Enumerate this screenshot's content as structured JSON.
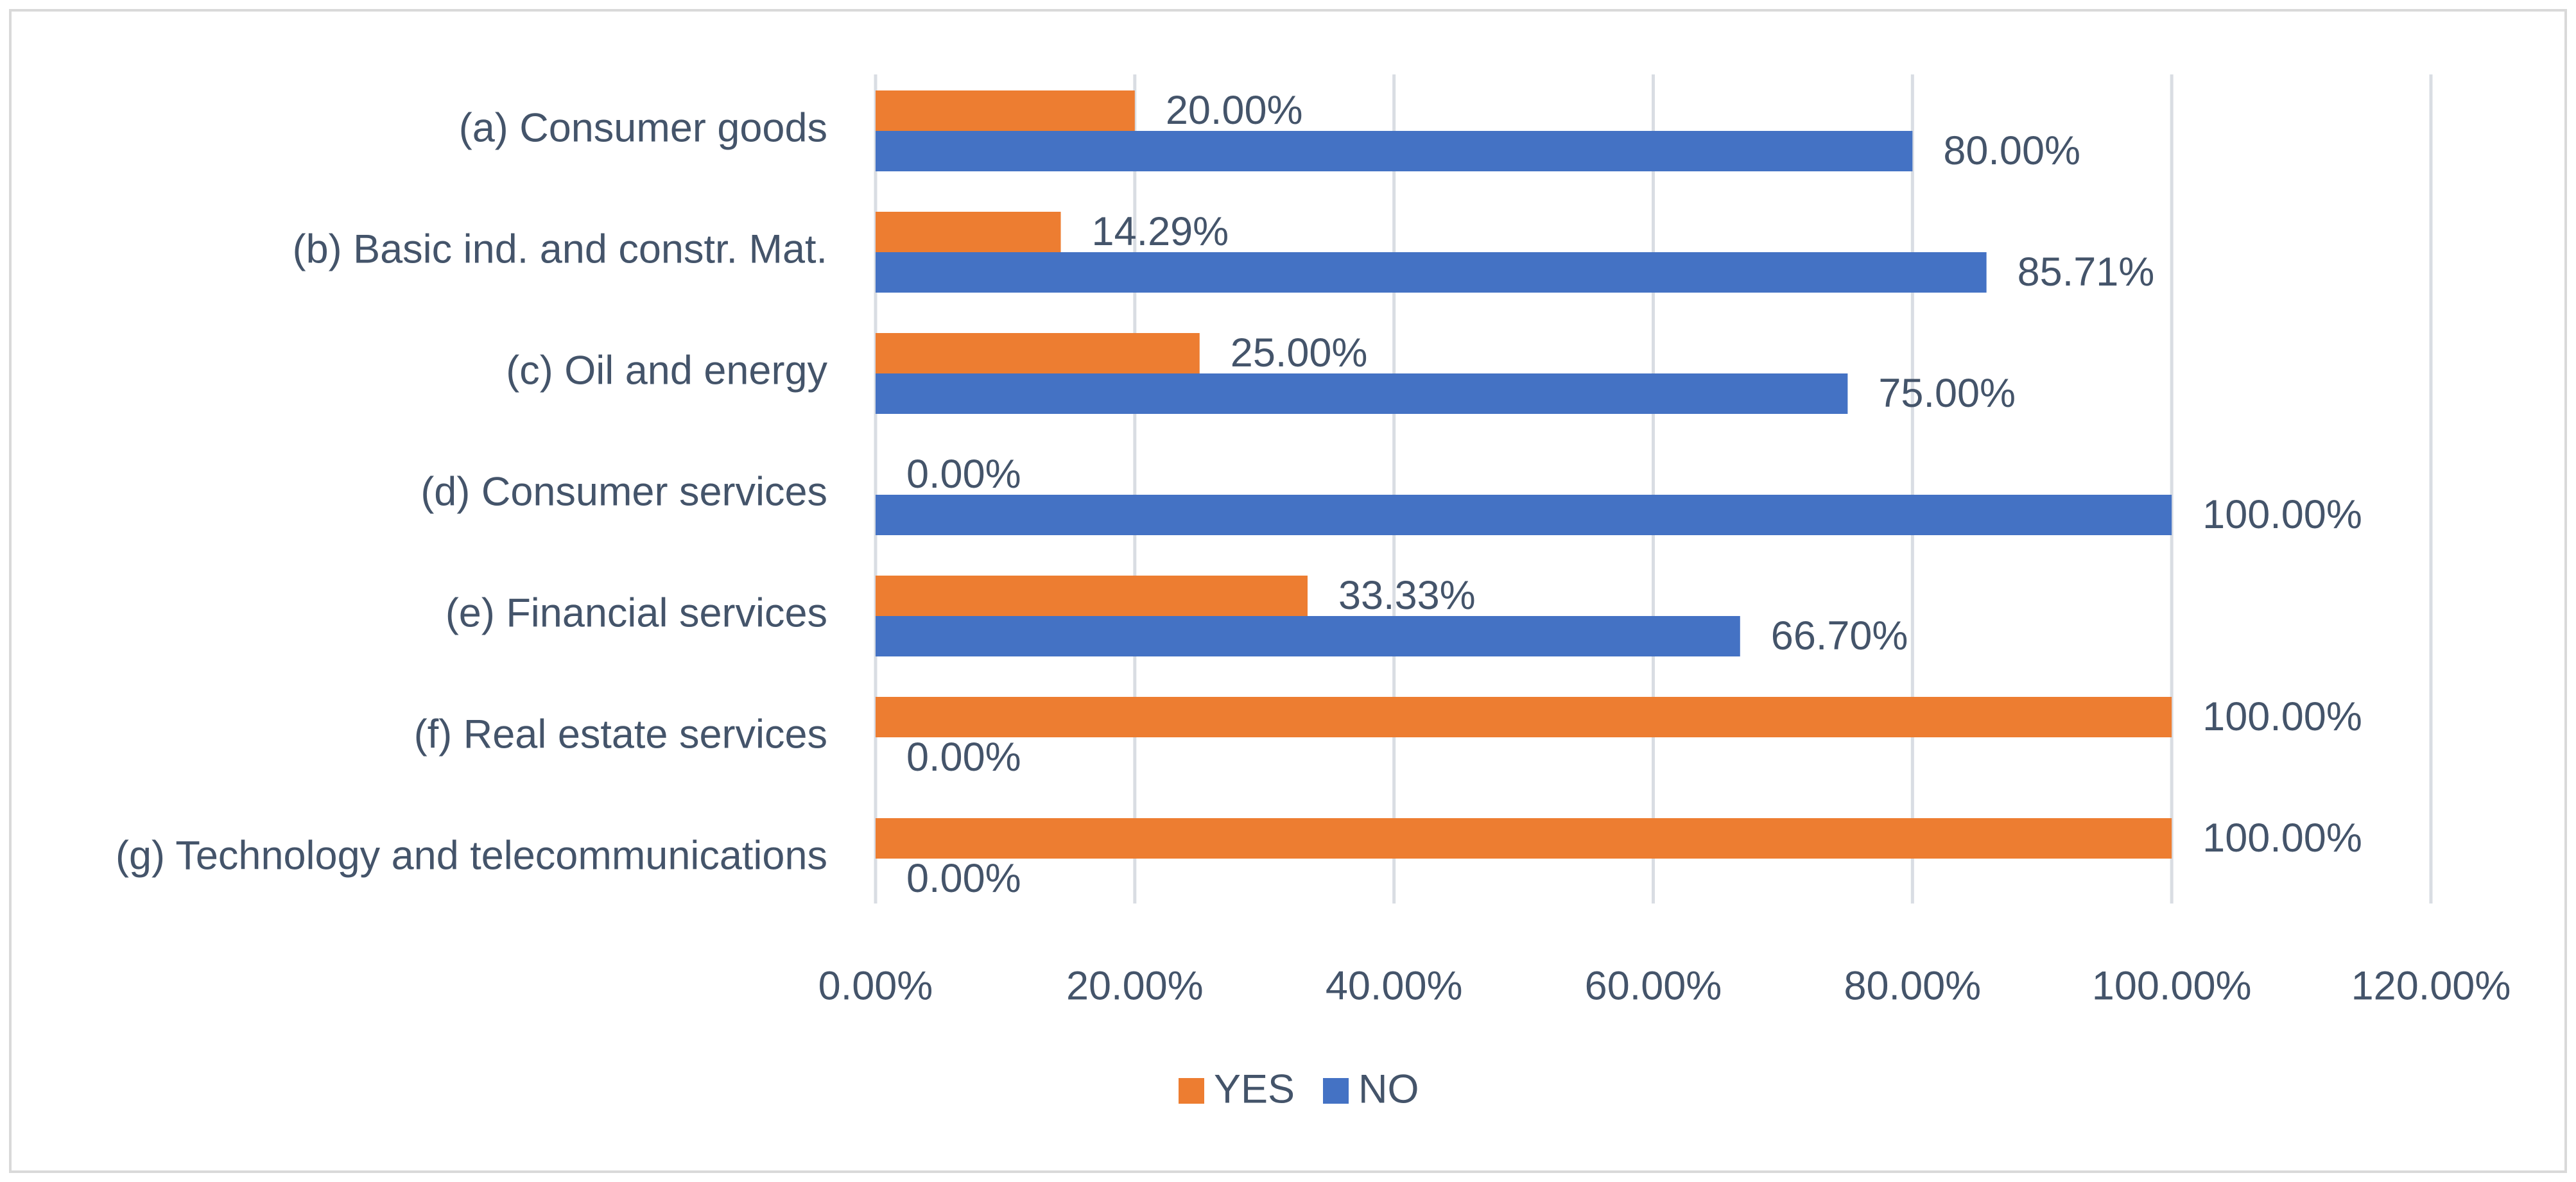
{
  "chart_data": {
    "type": "bar",
    "orientation": "horizontal",
    "title": "",
    "xlabel": "",
    "ylabel": "",
    "categories": [
      "(a) Consumer goods",
      "(b) Basic ind. and constr. Mat.",
      "(c) Oil and energy",
      "(d) Consumer services",
      "(e) Financial services",
      "(f) Real estate services",
      "(g) Technology and telecommunications"
    ],
    "series": [
      {
        "name": "YES",
        "color": "#ed7d31",
        "values": [
          20.0,
          14.29,
          25.0,
          0.0,
          33.33,
          100.0,
          100.0
        ],
        "labels": [
          "20.00%",
          "14.29%",
          "25.00%",
          "0.00%",
          "33.33%",
          "100.00%",
          "100.00%"
        ]
      },
      {
        "name": "NO",
        "color": "#4472c4",
        "values": [
          80.0,
          85.71,
          75.0,
          100.0,
          66.7,
          0.0,
          0.0
        ],
        "labels": [
          "80.00%",
          "85.71%",
          "75.00%",
          "100.00%",
          "66.70%",
          "0.00%",
          "0.00%"
        ]
      }
    ],
    "xlim": [
      0,
      120
    ],
    "x_ticks": [
      0,
      20,
      40,
      60,
      80,
      100,
      120
    ],
    "x_tick_labels": [
      "0.00%",
      "20.00%",
      "40.00%",
      "60.00%",
      "80.00%",
      "100.00%",
      "120.00%"
    ],
    "grid": true,
    "legend": {
      "position": "bottom",
      "entries": [
        "YES",
        "NO"
      ]
    }
  }
}
